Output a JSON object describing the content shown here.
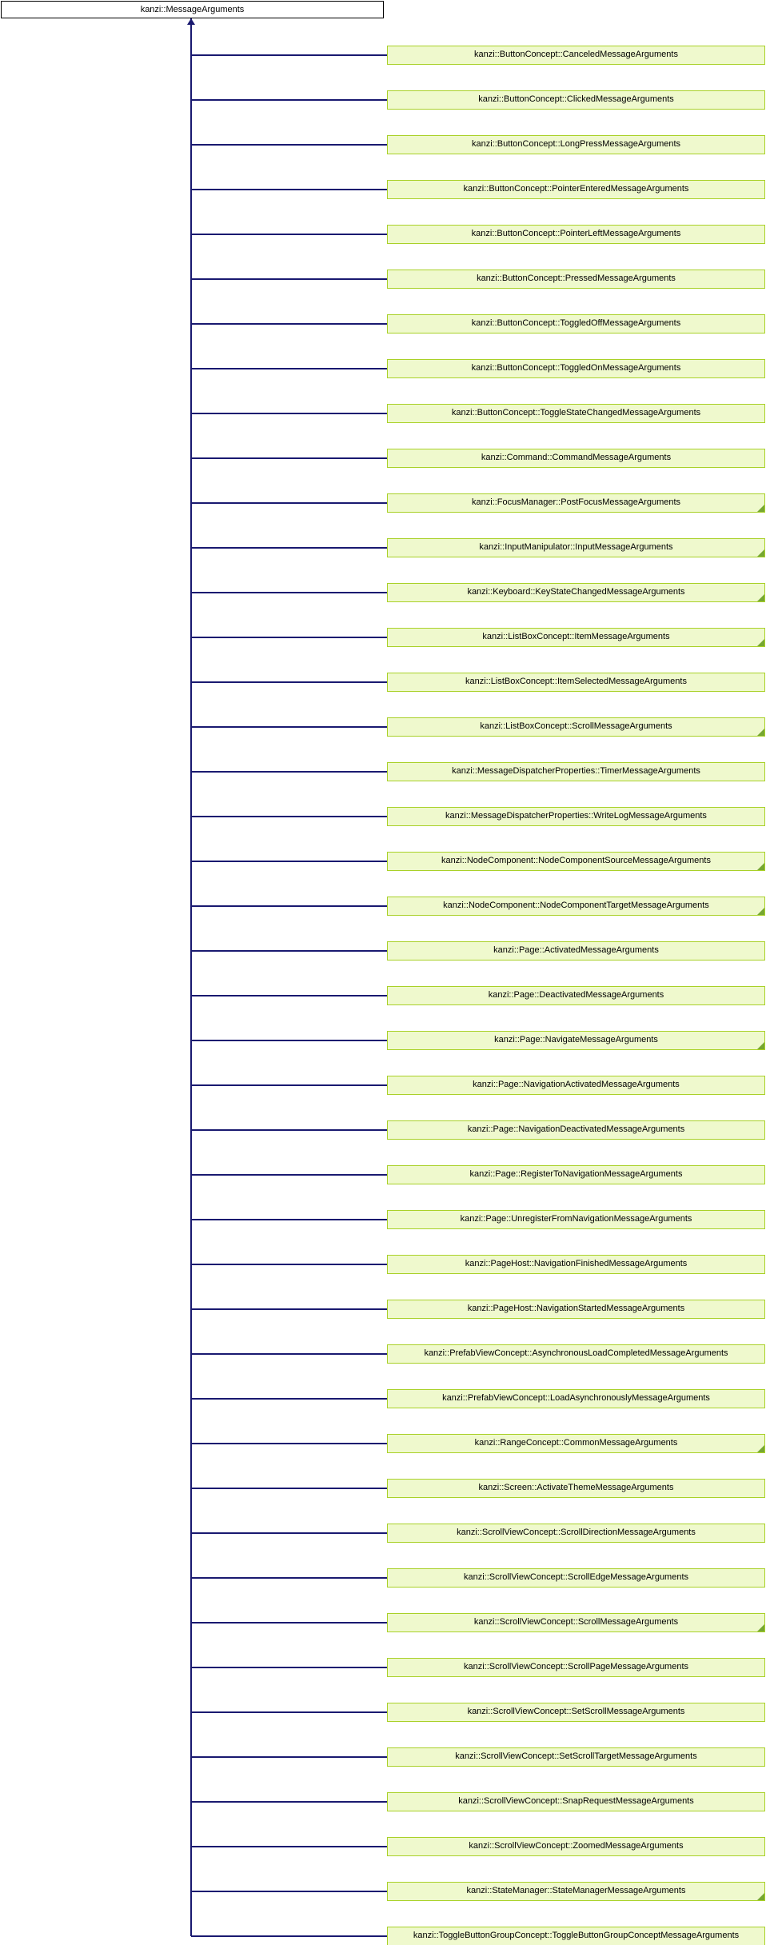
{
  "diagram": {
    "root": {
      "label": "kanzi::MessageArguments"
    },
    "children": [
      {
        "label": "kanzi::ButtonConcept::CanceledMessageArguments",
        "has_subclasses": false
      },
      {
        "label": "kanzi::ButtonConcept::ClickedMessageArguments",
        "has_subclasses": false
      },
      {
        "label": "kanzi::ButtonConcept::LongPressMessageArguments",
        "has_subclasses": false
      },
      {
        "label": "kanzi::ButtonConcept::PointerEnteredMessageArguments",
        "has_subclasses": false
      },
      {
        "label": "kanzi::ButtonConcept::PointerLeftMessageArguments",
        "has_subclasses": false
      },
      {
        "label": "kanzi::ButtonConcept::PressedMessageArguments",
        "has_subclasses": false
      },
      {
        "label": "kanzi::ButtonConcept::ToggledOffMessageArguments",
        "has_subclasses": false
      },
      {
        "label": "kanzi::ButtonConcept::ToggledOnMessageArguments",
        "has_subclasses": false
      },
      {
        "label": "kanzi::ButtonConcept::ToggleStateChangedMessageArguments",
        "has_subclasses": false
      },
      {
        "label": "kanzi::Command::CommandMessageArguments",
        "has_subclasses": false
      },
      {
        "label": "kanzi::FocusManager::PostFocusMessageArguments",
        "has_subclasses": true
      },
      {
        "label": "kanzi::InputManipulator::InputMessageArguments",
        "has_subclasses": true
      },
      {
        "label": "kanzi::Keyboard::KeyStateChangedMessageArguments",
        "has_subclasses": true
      },
      {
        "label": "kanzi::ListBoxConcept::ItemMessageArguments",
        "has_subclasses": true
      },
      {
        "label": "kanzi::ListBoxConcept::ItemSelectedMessageArguments",
        "has_subclasses": false
      },
      {
        "label": "kanzi::ListBoxConcept::ScrollMessageArguments",
        "has_subclasses": true
      },
      {
        "label": "kanzi::MessageDispatcherProperties::TimerMessageArguments",
        "has_subclasses": false
      },
      {
        "label": "kanzi::MessageDispatcherProperties::WriteLogMessageArguments",
        "has_subclasses": false
      },
      {
        "label": "kanzi::NodeComponent::NodeComponentSourceMessageArguments",
        "has_subclasses": true
      },
      {
        "label": "kanzi::NodeComponent::NodeComponentTargetMessageArguments",
        "has_subclasses": true
      },
      {
        "label": "kanzi::Page::ActivatedMessageArguments",
        "has_subclasses": false
      },
      {
        "label": "kanzi::Page::DeactivatedMessageArguments",
        "has_subclasses": false
      },
      {
        "label": "kanzi::Page::NavigateMessageArguments",
        "has_subclasses": true
      },
      {
        "label": "kanzi::Page::NavigationActivatedMessageArguments",
        "has_subclasses": false
      },
      {
        "label": "kanzi::Page::NavigationDeactivatedMessageArguments",
        "has_subclasses": false
      },
      {
        "label": "kanzi::Page::RegisterToNavigationMessageArguments",
        "has_subclasses": false
      },
      {
        "label": "kanzi::Page::UnregisterFromNavigationMessageArguments",
        "has_subclasses": false
      },
      {
        "label": "kanzi::PageHost::NavigationFinishedMessageArguments",
        "has_subclasses": false
      },
      {
        "label": "kanzi::PageHost::NavigationStartedMessageArguments",
        "has_subclasses": false
      },
      {
        "label": "kanzi::PrefabViewConcept::AsynchronousLoadCompletedMessageArguments",
        "has_subclasses": false
      },
      {
        "label": "kanzi::PrefabViewConcept::LoadAsynchronouslyMessageArguments",
        "has_subclasses": false
      },
      {
        "label": "kanzi::RangeConcept::CommonMessageArguments",
        "has_subclasses": true
      },
      {
        "label": "kanzi::Screen::ActivateThemeMessageArguments",
        "has_subclasses": false
      },
      {
        "label": "kanzi::ScrollViewConcept::ScrollDirectionMessageArguments",
        "has_subclasses": false
      },
      {
        "label": "kanzi::ScrollViewConcept::ScrollEdgeMessageArguments",
        "has_subclasses": false
      },
      {
        "label": "kanzi::ScrollViewConcept::ScrollMessageArguments",
        "has_subclasses": true
      },
      {
        "label": "kanzi::ScrollViewConcept::ScrollPageMessageArguments",
        "has_subclasses": false
      },
      {
        "label": "kanzi::ScrollViewConcept::SetScrollMessageArguments",
        "has_subclasses": false
      },
      {
        "label": "kanzi::ScrollViewConcept::SetScrollTargetMessageArguments",
        "has_subclasses": false
      },
      {
        "label": "kanzi::ScrollViewConcept::SnapRequestMessageArguments",
        "has_subclasses": false
      },
      {
        "label": "kanzi::ScrollViewConcept::ZoomedMessageArguments",
        "has_subclasses": false
      },
      {
        "label": "kanzi::StateManager::StateManagerMessageArguments",
        "has_subclasses": true
      },
      {
        "label": "kanzi::ToggleButtonGroupConcept::ToggleButtonGroupConceptMessageArguments",
        "has_subclasses": false
      }
    ],
    "colors": {
      "edge": "#191970",
      "root_fill": "#ffffff",
      "root_border": "#000000",
      "node_fill": "#eff9cd",
      "node_border": "#a9d128",
      "subclass_marker": "#76a732",
      "text": "#000000"
    }
  }
}
